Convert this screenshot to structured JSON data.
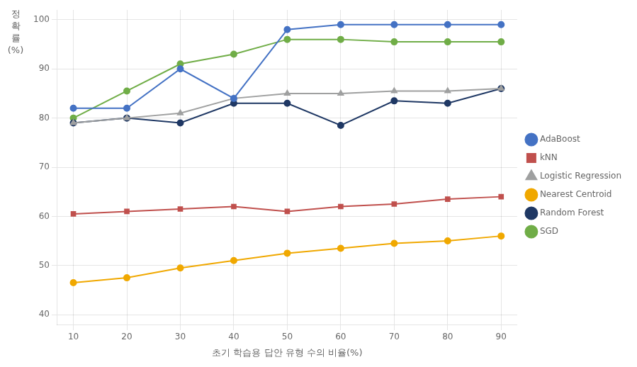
{
  "chart_data": {
    "type": "line",
    "xlabel": "초기 학습용 답안 유형 수의 비율(%)",
    "ylabel": [
      "정",
      "확",
      "률",
      "(%)"
    ],
    "x": [
      10,
      20,
      30,
      40,
      50,
      60,
      70,
      80,
      90
    ],
    "series": [
      {
        "name": "AdaBoost",
        "color": "#4472C4",
        "marker": "circle",
        "values": [
          82,
          82,
          90,
          84,
          98,
          99,
          99,
          99,
          99
        ]
      },
      {
        "name": "kNN",
        "color": "#C0504D",
        "marker": "square",
        "values": [
          60.5,
          61,
          61.5,
          62,
          61,
          62,
          62.5,
          63.5,
          64
        ]
      },
      {
        "name": "Logistic Regression",
        "color": "#9FA0A0",
        "marker": "triangle",
        "values": [
          79,
          80,
          81,
          84,
          85,
          85,
          85.5,
          85.5,
          86
        ]
      },
      {
        "name": "Nearest Centroid",
        "color": "#F0A800",
        "marker": "circle",
        "values": [
          46.5,
          47.5,
          49.5,
          51,
          52.5,
          53.5,
          54.5,
          55,
          56
        ]
      },
      {
        "name": "Random Forest",
        "color": "#1F3864",
        "marker": "circle",
        "values": [
          79,
          80,
          79,
          83,
          83,
          78.5,
          83.5,
          83,
          86
        ]
      },
      {
        "name": "SGD",
        "color": "#70AD47",
        "marker": "circle",
        "values": [
          80,
          85.5,
          91,
          93,
          96,
          96,
          95.5,
          95.5,
          95.5
        ]
      }
    ],
    "xlim": [
      7,
      93
    ],
    "xticks": [
      10,
      20,
      30,
      40,
      50,
      60,
      70,
      80,
      90
    ],
    "ylim": [
      38,
      102
    ],
    "yticks": [
      40,
      50,
      60,
      70,
      80,
      90,
      100
    ],
    "grid": true,
    "legend": "right"
  }
}
